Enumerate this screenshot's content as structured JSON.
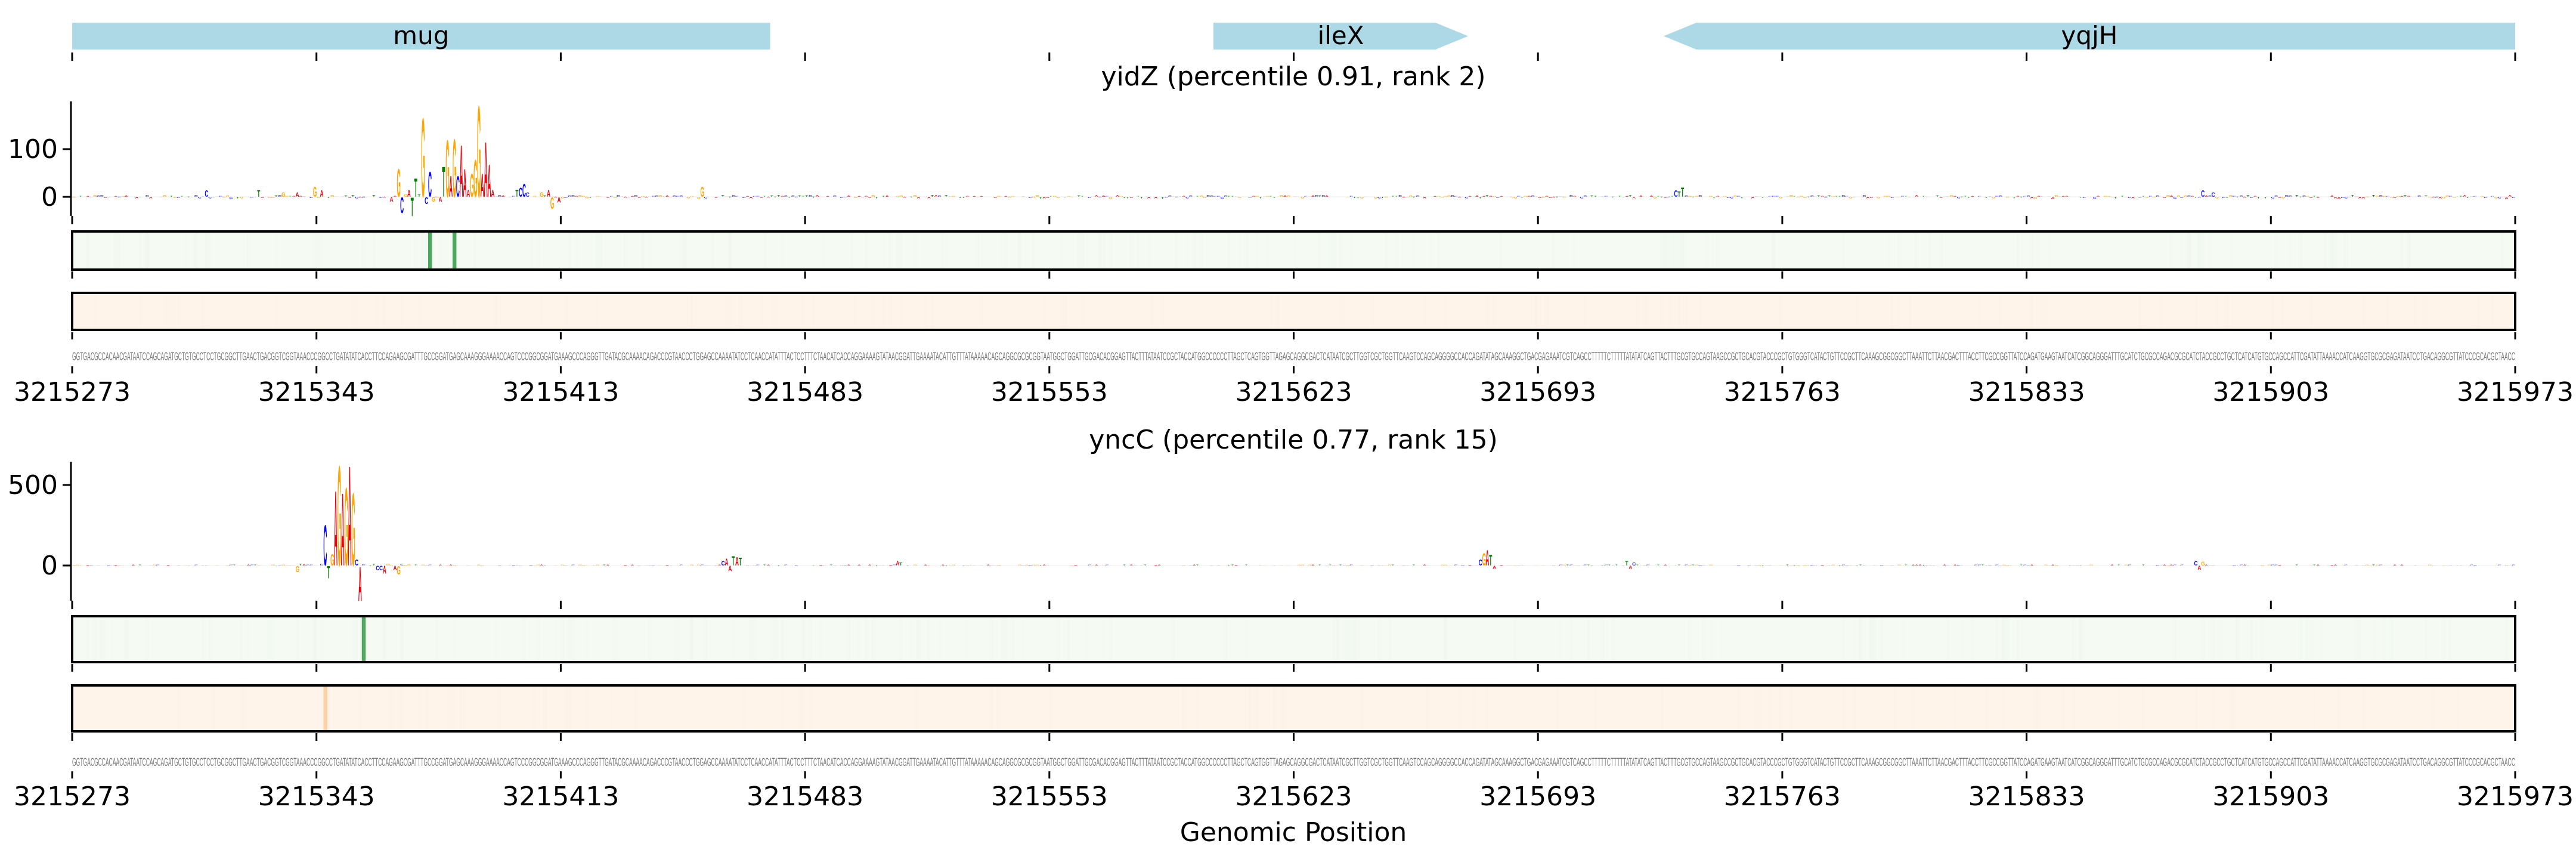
{
  "chart_data": {
    "type": "sequence-logo-tracks",
    "xlabel": "Genomic Position",
    "xlim": [
      3215273,
      3215973
    ],
    "xticks": [
      "3215273",
      "3215343",
      "3215413",
      "3215483",
      "3215553",
      "3215623",
      "3215693",
      "3215763",
      "3215833",
      "3215903",
      "3215973"
    ],
    "colors": {
      "A": "#e8000b",
      "C": "#0000ff",
      "G": "#ffa500",
      "T": "#008000",
      "gene": "#add8e6",
      "band1": "#f5faf2",
      "band1_hi": "#4ea75e",
      "band2": "#fef4ea",
      "band2_hi": "#fbd4a5",
      "sequence": "#777777"
    },
    "genes": [
      {
        "name": "mug",
        "start_bp": 0,
        "end_bp": 200,
        "strand": "none"
      },
      {
        "name": "ileX",
        "start_bp": 327,
        "end_bp": 400,
        "strand": "+"
      },
      {
        "name": "yqjH",
        "start_bp": 456,
        "end_bp": 700,
        "strand": "-"
      }
    ],
    "sequence": "GGTGACGCCACAACGATAATCCAGCAGATGCTGTGCCTCCTGCGGCTTGAACTGACGGTCGGTAAACCCGGCCTGATATATCACCTTCCAGAAGCGATTTGCCGGATGAGCAAAGGGAAAACCAGTCCCGGCGGATGAAAGCCCAGGGTTGATACGCAAAACAGACCCGTAACCCTGGAGCCAAAATATCCTCAACCATATTTACTCCTTTCTAACATCACCAGGAAAAGTATAACGGATTGAAAATACATTGTTTATAAAAACAGCAGGCGCGCGGTAATGGCTGGATTGCGACACGGAGTTACTTTATAATCCGCTACCATGGCCCCCCTTAGCTCAGTGGTTAGAGCAGGCGACTCATAATCGCTTGGTCGCTGGTTCAAGTCCAGCAGGGGCCACCAGATATAGCAAAGGCTGACGAGAAATCGTCAGCCTTTTTCTTTTTATATATCAGTTACTTTGCGTGCCAGTAAGCCGCTGCACGTACCCGCTGTGGGTCATACTGTTCCGCTTCAAAGCGGCGGCTTAAATTCTTAACGACTTTACCTTCGCCGGTTATCCAGATGAAGTAATCATCGGCAGGGATTTGCATCTGCGCCAGACGCGCATCTACCGCCTGCTCATCATGTGCCAGCCATTCGATATTAAAACCATCAAGGTGCGCGAGATAATCCTGACAGGCGTTATCCCGCACGCTAACC",
    "panels": [
      {
        "title": "yidZ (percentile 0.91, rank 2)",
        "ylim": [
          -40,
          200
        ],
        "yticks": [
          "0",
          "100"
        ],
        "ytick_values": [
          0,
          100
        ],
        "contributions": [
          [
            91,
            "A",
            -10
          ],
          [
            93,
            "G",
            60
          ],
          [
            94,
            "C",
            -34
          ],
          [
            95,
            "G",
            5
          ],
          [
            96,
            "A",
            15
          ],
          [
            97,
            "T",
            -40
          ],
          [
            98,
            "T",
            40
          ],
          [
            99,
            "T",
            6
          ],
          [
            100,
            "G",
            171
          ],
          [
            101,
            "C",
            -15
          ],
          [
            102,
            "C",
            54
          ],
          [
            103,
            "G",
            -10
          ],
          [
            105,
            "A",
            -10
          ],
          [
            106,
            "T",
            65
          ],
          [
            107,
            "G",
            123
          ],
          [
            108,
            "A",
            45
          ],
          [
            109,
            "G",
            125
          ],
          [
            110,
            "C",
            45
          ],
          [
            111,
            "A",
            112
          ],
          [
            112,
            "A",
            60
          ],
          [
            113,
            "A",
            15
          ],
          [
            114,
            "G",
            50
          ],
          [
            115,
            "G",
            80
          ],
          [
            116,
            "G",
            197
          ],
          [
            117,
            "A",
            50
          ],
          [
            118,
            "A",
            119
          ],
          [
            119,
            "A",
            70
          ],
          [
            120,
            "A",
            15
          ],
          [
            127,
            "T",
            15
          ],
          [
            128,
            "C",
            20
          ],
          [
            129,
            "C",
            28
          ],
          [
            130,
            "C",
            10
          ],
          [
            134,
            "G",
            10
          ],
          [
            136,
            "A",
            15
          ],
          [
            137,
            "G",
            -25
          ],
          [
            139,
            "A",
            -12
          ],
          [
            38,
            "C",
            14
          ],
          [
            53,
            "T",
            14
          ],
          [
            60,
            "G",
            10
          ],
          [
            64,
            "A",
            10
          ],
          [
            69,
            "G",
            22
          ],
          [
            71,
            "A",
            14
          ],
          [
            180,
            "G",
            22
          ],
          [
            459,
            "C",
            14
          ],
          [
            460,
            "T",
            12
          ],
          [
            461,
            "T",
            20
          ],
          [
            610,
            "C",
            14
          ],
          [
            613,
            "C",
            10
          ]
        ],
        "band_highlights": {
          "green_bp": [
            102,
            109
          ],
          "orange_bp": []
        }
      },
      {
        "title": "yncC (percentile 0.77, rank 15)",
        "ylim": [
          -220,
          640
        ],
        "yticks": [
          "0",
          "500"
        ],
        "ytick_values": [
          0,
          500
        ],
        "contributions": [
          [
            64,
            "G",
            -40
          ],
          [
            65,
            "T",
            12
          ],
          [
            66,
            "A",
            10
          ],
          [
            71,
            "C",
            10
          ],
          [
            72,
            "C",
            260
          ],
          [
            73,
            "T",
            -80
          ],
          [
            74,
            "G",
            75
          ],
          [
            75,
            "A",
            480
          ],
          [
            76,
            "G",
            640
          ],
          [
            77,
            "A",
            465
          ],
          [
            78,
            "G",
            500
          ],
          [
            79,
            "A",
            640
          ],
          [
            80,
            "G",
            465
          ],
          [
            81,
            "C",
            40
          ],
          [
            82,
            "A",
            -220
          ],
          [
            83,
            "C",
            8
          ],
          [
            86,
            "T",
            10
          ],
          [
            87,
            "C",
            -30
          ],
          [
            88,
            "C",
            -30
          ],
          [
            89,
            "A",
            -50
          ],
          [
            90,
            "G",
            12
          ],
          [
            92,
            "A",
            -30
          ],
          [
            93,
            "G",
            -55
          ],
          [
            94,
            "C",
            12
          ],
          [
            96,
            "G",
            8
          ],
          [
            186,
            "C",
            30
          ],
          [
            187,
            "A",
            45
          ],
          [
            188,
            "A",
            -35
          ],
          [
            189,
            "T",
            60
          ],
          [
            190,
            "A",
            55
          ],
          [
            191,
            "T",
            50
          ],
          [
            236,
            "A",
            30
          ],
          [
            237,
            "T",
            20
          ],
          [
            403,
            "C",
            40
          ],
          [
            404,
            "G",
            80
          ],
          [
            405,
            "A",
            100
          ],
          [
            406,
            "T",
            70
          ],
          [
            407,
            "A",
            -20
          ],
          [
            445,
            "T",
            30
          ],
          [
            446,
            "A",
            -20
          ],
          [
            447,
            "C",
            20
          ],
          [
            608,
            "C",
            30
          ],
          [
            609,
            "A",
            -25
          ],
          [
            610,
            "G",
            25
          ]
        ],
        "band_highlights": {
          "green_bp": [
            83
          ],
          "orange_bp": [
            72
          ]
        }
      }
    ]
  }
}
